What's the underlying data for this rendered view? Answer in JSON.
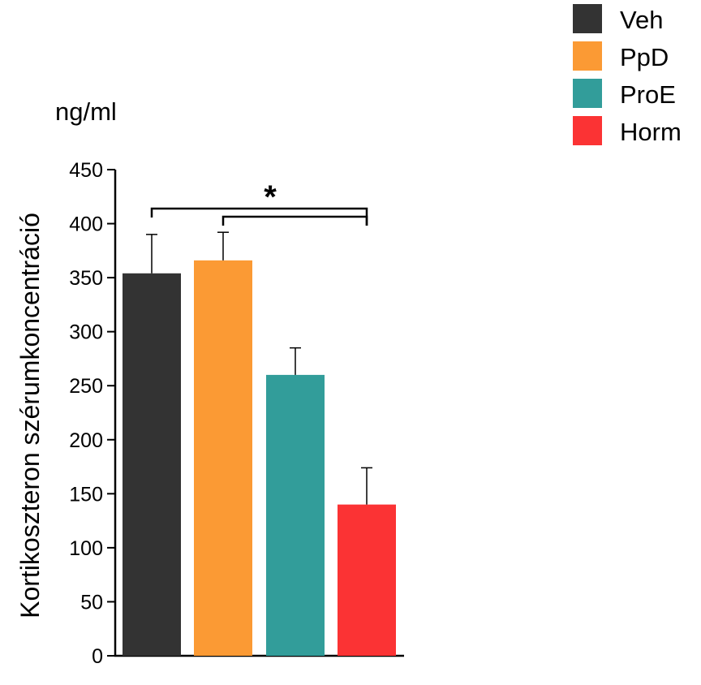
{
  "chart_data": {
    "type": "bar",
    "unit_label": "ng/ml",
    "ylabel": "Kortikoszteron szérumkoncentráció",
    "xlabel": "",
    "ylim": [
      0,
      450
    ],
    "yticks": [
      0,
      50,
      100,
      150,
      200,
      250,
      300,
      350,
      400,
      450
    ],
    "categories": [
      "Veh",
      "PpD",
      "ProE",
      "Horm"
    ],
    "values": [
      354,
      366,
      260,
      140
    ],
    "errors": [
      36,
      26,
      25,
      34
    ],
    "colors": [
      "#333333",
      "#fb9a34",
      "#329d9a",
      "#fb3334"
    ],
    "legend": {
      "position": "top-right",
      "entries": [
        {
          "label": "Veh",
          "color": "#333333"
        },
        {
          "label": "PpD",
          "color": "#fb9a34"
        },
        {
          "label": "ProE",
          "color": "#329d9a"
        },
        {
          "label": "Horm",
          "color": "#fb3334"
        }
      ]
    },
    "significance": {
      "symbol": "*",
      "comparisons": [
        [
          "Veh",
          "Horm"
        ],
        [
          "PpD",
          "Horm"
        ]
      ]
    },
    "grid": false
  }
}
